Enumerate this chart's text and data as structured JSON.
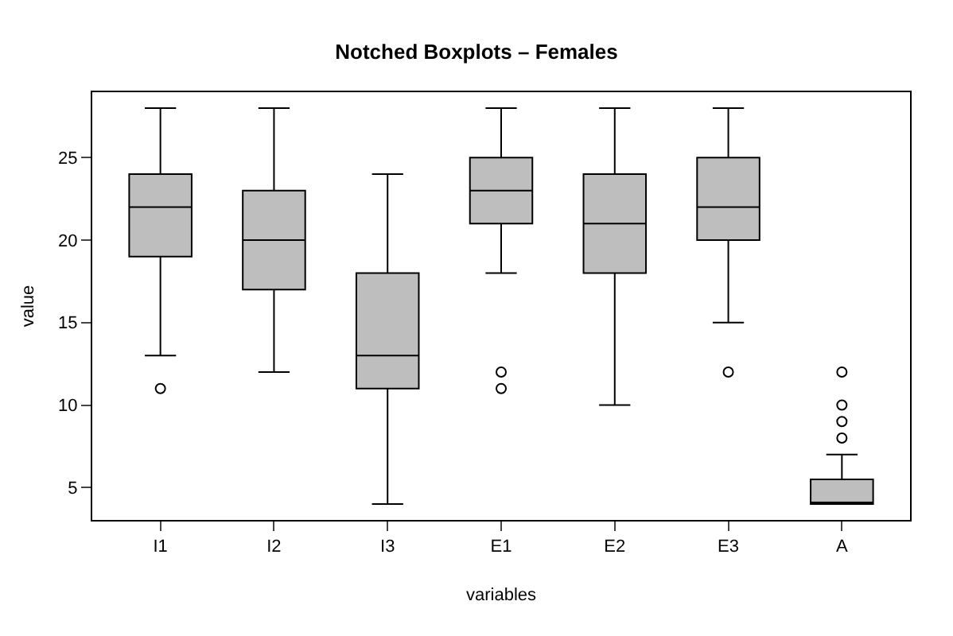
{
  "chart_data": {
    "type": "box",
    "title": "Notched Boxplots – Females",
    "xlabel": "variables",
    "ylabel": "value",
    "categories": [
      "I1",
      "I2",
      "I3",
      "E1",
      "E2",
      "E3",
      "A"
    ],
    "color": "#bebebe",
    "boxes": [
      {
        "low": 13,
        "q1": 19,
        "median": 22,
        "q3": 24,
        "high": 28,
        "outliers": [
          11
        ]
      },
      {
        "low": 12,
        "q1": 17,
        "median": 20,
        "q3": 23,
        "high": 28
      },
      {
        "low": 4,
        "q1": 11,
        "median": 13,
        "q3": 18,
        "high": 24
      },
      {
        "low": 18,
        "q1": 21,
        "median": 23,
        "q3": 25,
        "high": 28,
        "outliers": [
          12,
          11
        ]
      },
      {
        "low": 10,
        "q1": 18,
        "median": 21,
        "q3": 24,
        "high": 28
      },
      {
        "low": 15,
        "q1": 20,
        "median": 22,
        "q3": 25,
        "high": 28,
        "outliers": [
          12
        ]
      },
      {
        "low": 4,
        "q1": 4,
        "median": 4,
        "q3": 5.5,
        "high": 7,
        "outliers": [
          8,
          9,
          10,
          12
        ]
      }
    ],
    "ylim": [
      3.04,
      28.96
    ],
    "yticks": [
      5,
      10,
      15,
      20,
      25
    ],
    "marker": "circle"
  }
}
